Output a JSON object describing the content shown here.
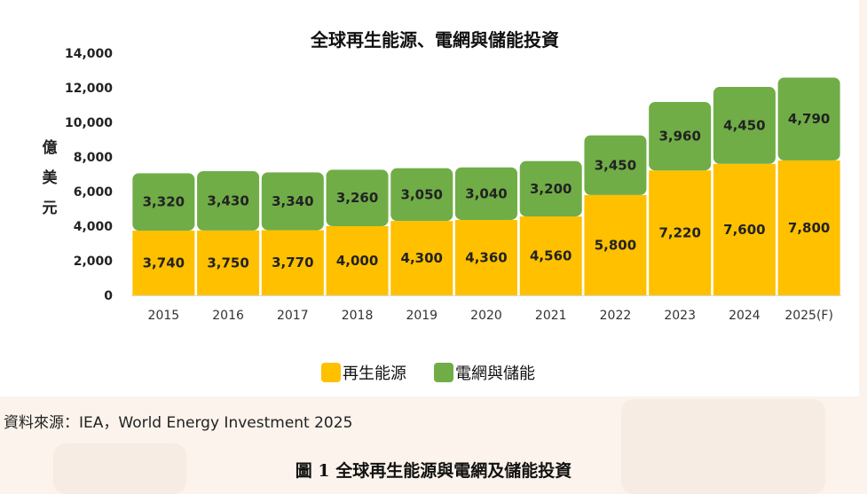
{
  "chart_data": {
    "type": "bar",
    "stacked": true,
    "title": "全球再生能源、電網與儲能投資",
    "ylabel": "億美元",
    "xlabel": "",
    "ylim": [
      0,
      14000
    ],
    "yticks": [
      "14,000",
      "12,000",
      "10,000",
      "8,000",
      "6,000",
      "4,000",
      "2,000",
      "0"
    ],
    "ytick_values": [
      14000,
      12000,
      10000,
      8000,
      6000,
      4000,
      2000,
      0
    ],
    "categories": [
      "2015",
      "2016",
      "2017",
      "2018",
      "2019",
      "2020",
      "2021",
      "2022",
      "2023",
      "2024",
      "2025(F)"
    ],
    "series": [
      {
        "name": "再生能源",
        "color": "#ffc000",
        "values": [
          3740,
          3750,
          3770,
          4000,
          4300,
          4360,
          4560,
          5800,
          7220,
          7600,
          7800
        ],
        "labels": [
          "3,740",
          "3,750",
          "3,770",
          "4,000",
          "4,300",
          "4,360",
          "4,560",
          "5,800",
          "7,220",
          "7,600",
          "7,800"
        ]
      },
      {
        "name": "電網與儲能",
        "color": "#70ad47",
        "values": [
          3320,
          3430,
          3340,
          3260,
          3050,
          3040,
          3200,
          3450,
          3960,
          4450,
          4790
        ],
        "labels": [
          "3,320",
          "3,430",
          "3,340",
          "3,260",
          "3,050",
          "3,040",
          "3,200",
          "3,450",
          "3,960",
          "4,450",
          "4,790"
        ]
      }
    ],
    "legend": "bottom-center",
    "grid": false
  },
  "source_note": "資料來源：IEA，World Energy Investment 2025",
  "figure_caption": "圖 1  全球再生能源與電網及儲能投資"
}
